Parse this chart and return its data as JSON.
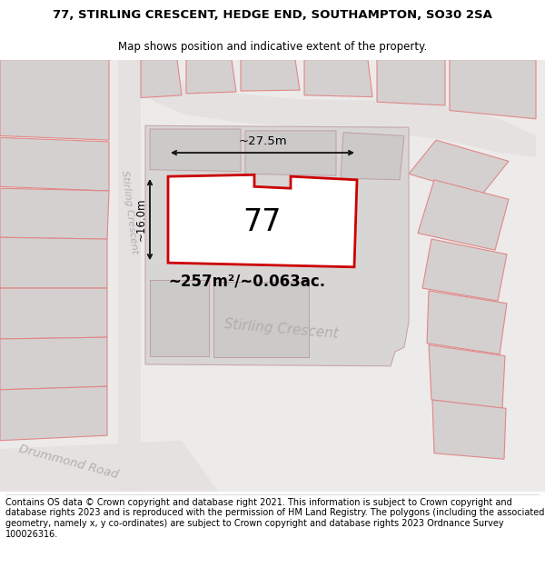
{
  "title_line1": "77, STIRLING CRESCENT, HEDGE END, SOUTHAMPTON, SO30 2SA",
  "title_line2": "Map shows position and indicative extent of the property.",
  "footer_text": "Contains OS data © Crown copyright and database right 2021. This information is subject to Crown copyright and database rights 2023 and is reproduced with the permission of HM Land Registry. The polygons (including the associated geometry, namely x, y co-ordinates) are subject to Crown copyright and database rights 2023 Ordnance Survey 100026316.",
  "area_label": "~257m²/~0.063ac.",
  "number_label": "77",
  "width_label": "~27.5m",
  "height_label": "~16.0m",
  "bg_color": "#f0eeee",
  "plot_line_color": "#cc0000",
  "dim_line_color": "#111111",
  "title_fontsize": 9.5,
  "subtitle_fontsize": 8.5,
  "footer_fontsize": 7.0,
  "red_edge": "#e08888",
  "building_fill": "#d4d0d0",
  "road_fill": "#e8e5e5",
  "plot_fill": "#ffffff"
}
